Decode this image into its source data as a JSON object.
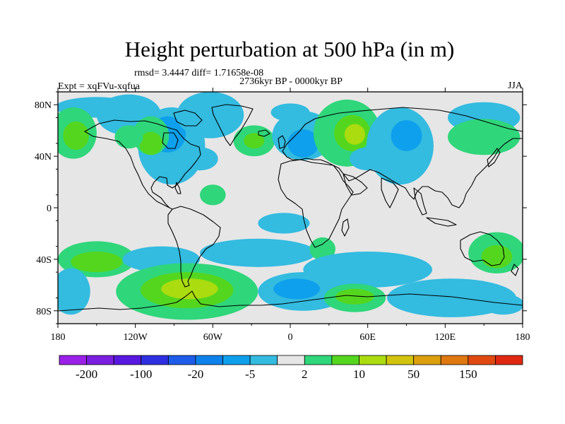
{
  "header": {
    "title": "Height perturbation at 500 hPa (in m)",
    "stats": "rmsd= 3.4447 diff= 1.71658e-08",
    "period": "2736kyr BP - 0000kyr BP",
    "experiment": "Expt = xqFVu-xqfua",
    "season": "JJA"
  },
  "map": {
    "projection": "cylindrical-equidistant",
    "lon_range": [
      -180,
      180
    ],
    "lat_range": [
      -90,
      90
    ],
    "lat_ticks": [
      {
        "value": 80,
        "label": "80N"
      },
      {
        "value": 40,
        "label": "40N"
      },
      {
        "value": 0,
        "label": "0"
      },
      {
        "value": -40,
        "label": "40S"
      },
      {
        "value": -80,
        "label": "80S"
      }
    ],
    "lon_ticks": [
      {
        "value": -180,
        "label": "180"
      },
      {
        "value": -120,
        "label": "120W"
      },
      {
        "value": -60,
        "label": "60W"
      },
      {
        "value": 0,
        "label": "0"
      },
      {
        "value": 60,
        "label": "60E"
      },
      {
        "value": 120,
        "label": "120E"
      },
      {
        "value": 180,
        "label": "180"
      }
    ],
    "background_color": "#e6e6e6",
    "anomalies": [
      {
        "lon": -150,
        "lat": 78,
        "rx": 32,
        "ry": 8,
        "color": "#33bbe0"
      },
      {
        "lon": -168,
        "lat": 58,
        "rx": 18,
        "ry": 20,
        "color": "#2fd67a"
      },
      {
        "lon": -166,
        "lat": 56,
        "rx": 10,
        "ry": 11,
        "color": "#55d61e"
      },
      {
        "lon": -125,
        "lat": 72,
        "rx": 25,
        "ry": 16,
        "color": "#33bbe0"
      },
      {
        "lon": -92,
        "lat": 48,
        "rx": 26,
        "ry": 30,
        "color": "#33bbe0"
      },
      {
        "lon": -95,
        "lat": 57,
        "rx": 14,
        "ry": 14,
        "color": "#0ea0ec"
      },
      {
        "lon": -108,
        "lat": 56,
        "rx": 14,
        "ry": 15,
        "color": "#2fd67a"
      },
      {
        "lon": -108,
        "lat": 50,
        "rx": 9,
        "ry": 9,
        "color": "#55d61e"
      },
      {
        "lon": -62,
        "lat": 72,
        "rx": 26,
        "ry": 18,
        "color": "#33bbe0"
      },
      {
        "lon": -125,
        "lat": 55,
        "rx": 11,
        "ry": 9,
        "color": "#2fd67a"
      },
      {
        "lon": -70,
        "lat": 38,
        "rx": 14,
        "ry": 9,
        "color": "#33bbe0"
      },
      {
        "lon": -28,
        "lat": 52,
        "rx": 16,
        "ry": 12,
        "color": "#2fd67a"
      },
      {
        "lon": -28,
        "lat": 52,
        "rx": 8,
        "ry": 6,
        "color": "#55d61e"
      },
      {
        "lon": 10,
        "lat": 56,
        "rx": 24,
        "ry": 19,
        "color": "#33bbe0"
      },
      {
        "lon": 10,
        "lat": 50,
        "rx": 12,
        "ry": 11,
        "color": "#0ea0ec"
      },
      {
        "lon": 0,
        "lat": 74,
        "rx": 15,
        "ry": 7,
        "color": "#33bbe0"
      },
      {
        "lon": 44,
        "lat": 58,
        "rx": 26,
        "ry": 26,
        "color": "#2fd67a"
      },
      {
        "lon": 48,
        "lat": 58,
        "rx": 14,
        "ry": 14,
        "color": "#55d61e"
      },
      {
        "lon": 50,
        "lat": 57,
        "rx": 8,
        "ry": 8,
        "color": "#aadc10"
      },
      {
        "lon": 60,
        "lat": 38,
        "rx": 14,
        "ry": 9,
        "color": "#33bbe0"
      },
      {
        "lon": 85,
        "lat": 48,
        "rx": 26,
        "ry": 30,
        "color": "#33bbe0"
      },
      {
        "lon": 90,
        "lat": 56,
        "rx": 12,
        "ry": 12,
        "color": "#0ea0ec"
      },
      {
        "lon": 150,
        "lat": 70,
        "rx": 28,
        "ry": 12,
        "color": "#33bbe0"
      },
      {
        "lon": 150,
        "lat": 55,
        "rx": 28,
        "ry": 14,
        "color": "#2fd67a"
      },
      {
        "lon": -60,
        "lat": 10,
        "rx": 10,
        "ry": 8,
        "color": "#2fd67a"
      },
      {
        "lon": -150,
        "lat": -40,
        "rx": 30,
        "ry": 14,
        "color": "#2fd67a"
      },
      {
        "lon": -150,
        "lat": -42,
        "rx": 20,
        "ry": 8,
        "color": "#55d61e"
      },
      {
        "lon": -100,
        "lat": -40,
        "rx": 30,
        "ry": 10,
        "color": "#33bbe0"
      },
      {
        "lon": -25,
        "lat": -35,
        "rx": 45,
        "ry": 11,
        "color": "#33bbe0"
      },
      {
        "lon": -5,
        "lat": -12,
        "rx": 20,
        "ry": 8,
        "color": "#33bbe0"
      },
      {
        "lon": 25,
        "lat": -32,
        "rx": 10,
        "ry": 9,
        "color": "#2fd67a"
      },
      {
        "lon": 60,
        "lat": -48,
        "rx": 50,
        "ry": 14,
        "color": "#33bbe0"
      },
      {
        "lon": 160,
        "lat": -35,
        "rx": 22,
        "ry": 16,
        "color": "#2fd67a"
      },
      {
        "lon": 160,
        "lat": -38,
        "rx": 12,
        "ry": 9,
        "color": "#55d61e"
      },
      {
        "lon": -170,
        "lat": -65,
        "rx": 15,
        "ry": 18,
        "color": "#33bbe0"
      },
      {
        "lon": -80,
        "lat": -65,
        "rx": 55,
        "ry": 22,
        "color": "#2fd67a"
      },
      {
        "lon": -80,
        "lat": -64,
        "rx": 36,
        "ry": 14,
        "color": "#55d61e"
      },
      {
        "lon": -78,
        "lat": -63,
        "rx": 22,
        "ry": 8,
        "color": "#aadc10"
      },
      {
        "lon": 10,
        "lat": -65,
        "rx": 35,
        "ry": 15,
        "color": "#33bbe0"
      },
      {
        "lon": 5,
        "lat": -63,
        "rx": 18,
        "ry": 8,
        "color": "#0ea0ec"
      },
      {
        "lon": 50,
        "lat": -70,
        "rx": 24,
        "ry": 11,
        "color": "#2fd67a"
      },
      {
        "lon": 50,
        "lat": -69,
        "rx": 15,
        "ry": 6,
        "color": "#55d61e"
      },
      {
        "lon": 125,
        "lat": -70,
        "rx": 50,
        "ry": 15,
        "color": "#33bbe0"
      },
      {
        "lon": 165,
        "lat": -75,
        "rx": 16,
        "ry": 8,
        "color": "#33bbe0"
      }
    ]
  },
  "colorbar": {
    "colors": [
      "#9a20e8",
      "#7a1ee0",
      "#5818e0",
      "#2f2fe2",
      "#1e5cea",
      "#0e82ec",
      "#0ea0ec",
      "#33bbe0",
      "#e6e6e6",
      "#2fd67a",
      "#55d61e",
      "#aadc10",
      "#d2c40e",
      "#dca00e",
      "#e07810",
      "#e04a10",
      "#e02810"
    ],
    "labels": [
      {
        "after_box": 1,
        "text": "-200"
      },
      {
        "after_box": 3,
        "text": "-100"
      },
      {
        "after_box": 5,
        "text": "-20"
      },
      {
        "after_box": 7,
        "text": "-5"
      },
      {
        "after_box": 9,
        "text": "2"
      },
      {
        "after_box": 11,
        "text": "10"
      },
      {
        "after_box": 13,
        "text": "50"
      },
      {
        "after_box": 15,
        "text": "150"
      }
    ]
  }
}
